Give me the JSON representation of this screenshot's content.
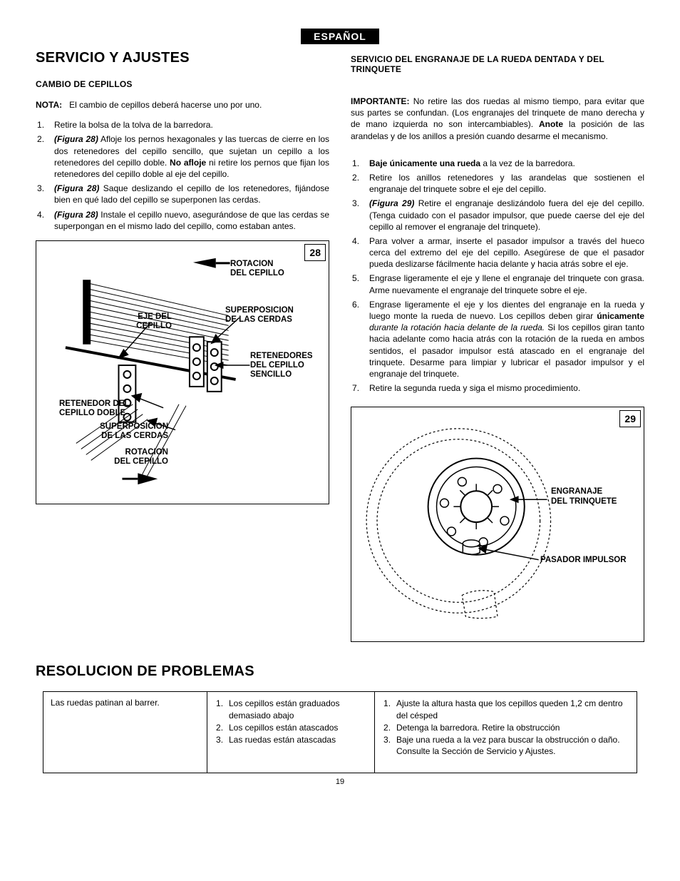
{
  "lang_badge": "ESPAÑOL",
  "page_number": "19",
  "left": {
    "h1": "SERVICIO Y AJUSTES",
    "h2": "CAMBIO DE CEPILLOS",
    "note_label": "NOTA:",
    "note_text": "El cambio de cepillos deberá hacerse uno por uno.",
    "steps": [
      {
        "plain": "Retire la bolsa de la tolva de la barredora."
      },
      {
        "fig": "(Figura 28)",
        "text": " Afloje los pernos hexagonales y las tuercas de cierre en los dos retenedores del cepillo sencillo, que sujetan un cepillo a los retenedores del cepillo doble. ",
        "bold2": "No afloje",
        "tail": " ni retire los pernos que fijan los retenedores del cepillo doble al eje del cepillo."
      },
      {
        "fig": "(Figura 28)",
        "text": " Saque deslizando el cepillo de los retenedores, fijándose bien en qué lado del cepillo se superponen las cerdas."
      },
      {
        "fig": "(Figura 28)",
        "text": " Instale el cepillo nuevo, asegurándose de que las cerdas se superpongan en el mismo lado del cepillo, como estaban antes."
      }
    ],
    "fig28": {
      "num": "28",
      "labels": {
        "rotacion_top": "ROTACION\nDEL CEPILLO",
        "eje": "EJE DEL\nCEPILLO",
        "superpos_top": "SUPERPOSICION\nDE LAS CERDAS",
        "retenedor_sencillo": "RETENEDORES\nDEL CEPILLO\nSENCILLO",
        "retenedor_doble": "RETENEDOR DEL\nCEPILLO DOBLE",
        "superpos_bot": "SUPERPOSICION\nDE LAS CERDAS",
        "rotacion_bot": "ROTACION\nDEL CEPILLO"
      }
    }
  },
  "right": {
    "h2": "SERVICIO DEL ENGRANAJE DE LA RUEDA DENTADA Y DEL TRINQUETE",
    "importante_label": "IMPORTANTE:",
    "importante_text": " No retire las dos ruedas al mismo tiempo, para evitar que sus partes se confundan. (Los engranajes del trinquete de mano derecha y de mano izquierda no son intercambiables). ",
    "anote_label": "Anote",
    "anote_text": " la posición de las arandelas y de los anillos a presión cuando desarme el mecanismo.",
    "steps": [
      {
        "bold": "Baje únicamente una rueda",
        "tail": " a la vez de la barredora."
      },
      {
        "plain": "Retire los anillos retenedores y las arandelas que sostienen el engranaje del trinquete sobre el eje del cepillo."
      },
      {
        "fig": "(Figura 29)",
        "text": " Retire el engranaje deslizándolo fuera del eje del cepillo. (Tenga cuidado con el pasador impulsor, que puede caerse del eje del cepillo al remover el engranaje del trinquete)."
      },
      {
        "plain": "Para volver a armar, inserte el pasador impulsor a través del hueco cerca del extremo del eje del cepillo. Asegúrese de que el pasador pueda deslizarse fácilmente hacia delante y hacia atrás sobre el eje."
      },
      {
        "plain": "Engrase ligeramente el eje y llene el engranaje del trinquete con grasa. Arme nuevamente el engranaje del trinquete sobre el eje."
      },
      {
        "pre": "Engrase ligeramente el eje y los dientes del engranaje en la rueda y luego monte la rueda de nuevo. Los cepillos deben girar ",
        "bold": "únicamente",
        "ital": " durante la rotación hacia delante de la rueda.",
        "tail": " Si los cepillos giran tanto hacia adelante como hacia atrás con la rotación de la rueda en ambos sentidos, el pasador impulsor está atascado en el engranaje del trinquete. Desarme para limpiar y lubricar el pasador impulsor y el engranaje del trinquete."
      },
      {
        "plain": "Retire la segunda rueda y siga el mismo procedimiento."
      }
    ],
    "fig29": {
      "num": "29",
      "labels": {
        "engranaje": "ENGRANAJE\nDEL TRINQUETE",
        "pasador": "PASADOR IMPULSOR"
      }
    }
  },
  "troubleshoot": {
    "h1": "RESOLUCION DE PROBLEMAS",
    "col1": "Las ruedas patinan al barrer.",
    "col2": [
      "Los cepillos están graduados demasiado abajo",
      "Los cepillos están atascados",
      "Las ruedas están atascadas"
    ],
    "col3": [
      "Ajuste la altura hasta que los cepillos queden 1,2 cm dentro del césped",
      "Detenga la barredora. Retire la obstrucción",
      "Baje una rueda a la vez para buscar la obstrucción o daño. Consulte la Sección de Servicio y Ajustes."
    ]
  }
}
